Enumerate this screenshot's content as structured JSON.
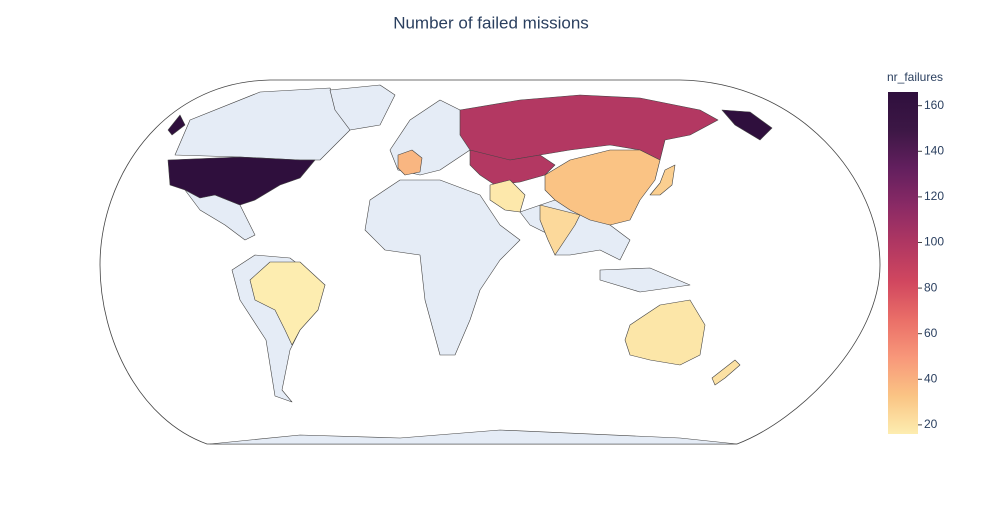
{
  "chart_data": {
    "type": "choropleth",
    "title": "Number of failed missions",
    "colorbar_title": "nr_failures",
    "values": [
      166,
      98,
      98,
      33,
      24,
      18,
      38,
      28,
      16,
      19,
      21
    ],
    "zlim": [
      16,
      166
    ],
    "zticks": [
      20,
      40,
      60,
      80,
      100,
      120,
      140,
      160
    ],
    "colorscale": [
      "#fdedb0",
      "#fac484",
      "#f8987a",
      "#ea6f68",
      "#d1475f",
      "#b03762",
      "#8a2a65",
      "#621f5e",
      "#3c1745",
      "#2f0f3d"
    ],
    "land_color": "#e5ecf6"
  }
}
